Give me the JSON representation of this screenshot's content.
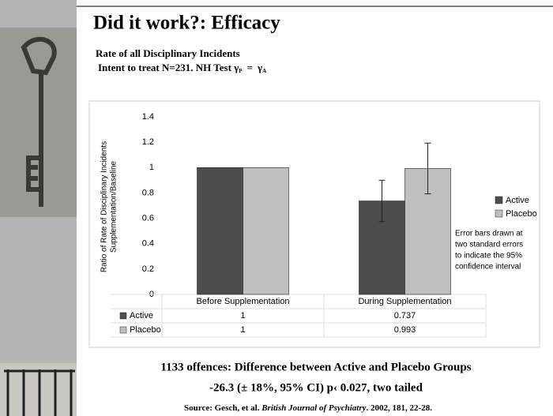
{
  "chart_data": {
    "type": "bar",
    "title": "Did it work?: Efficacy",
    "subtitle": "Rate of all Disciplinary Incidents",
    "subtitle2": {
      "text": "Intent to treat N=231.  NH Test",
      "gamma1": "γ",
      "sub1": "P",
      "eq": "=",
      "gamma2": "γ",
      "sub2": "A"
    },
    "ylabel": [
      "Ratio of Rate of Disciplinary Incidents",
      "Supplementation/Baseline"
    ],
    "categories": [
      "Before Supplementation",
      "During Supplementation"
    ],
    "series": [
      {
        "name": "Active",
        "color": "#4d4d4d",
        "values": [
          1,
          0.737
        ],
        "errors": [
          0,
          0.163
        ]
      },
      {
        "name": "Placebo",
        "color": "#bfbfbf",
        "values": [
          1,
          0.993
        ],
        "errors": [
          0,
          0.2
        ]
      }
    ],
    "ylim": [
      0,
      1.4
    ],
    "yticks": [
      0,
      0.2,
      0.4,
      0.6,
      0.8,
      1,
      1.2,
      1.4
    ],
    "legend": "right",
    "annotation": [
      "Error bars drawn at",
      "two standard errors",
      "to indicate the 95%",
      "confidence interval"
    ],
    "footer": {
      "line1": "1133 offences:    Difference  between Active and Placebo Groups",
      "line2": "-26.3  (± 18%, 95% CI)  p‹ 0.027, two tailed",
      "source": {
        "prefix": "Source: Gesch, et al. ",
        "journal": "British Journal of Psychiatry",
        "suffix": ". 2002, 181, 22-28."
      }
    }
  }
}
